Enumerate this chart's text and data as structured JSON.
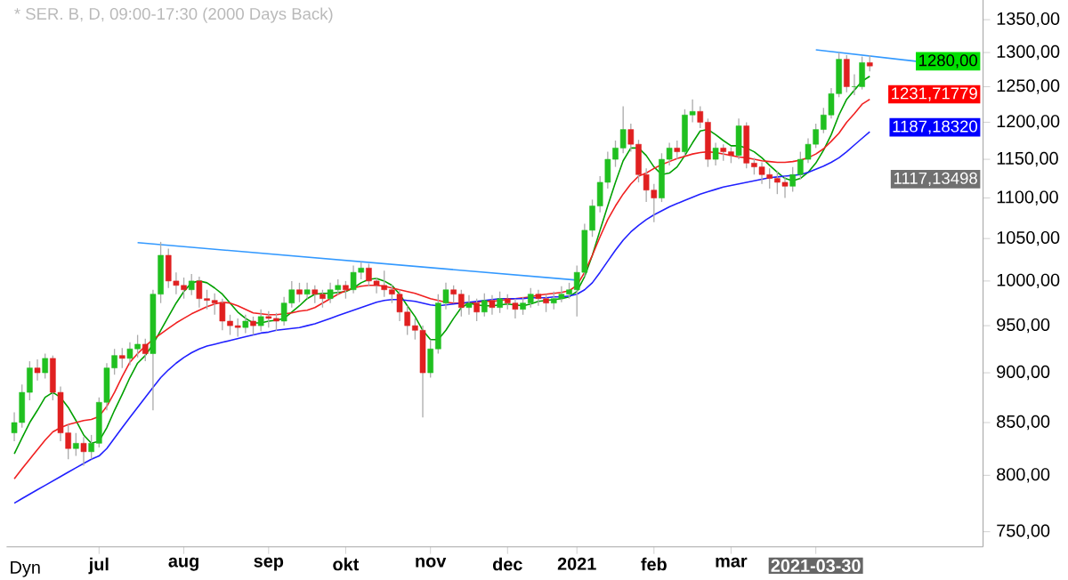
{
  "chart_data": {
    "type": "candlestick",
    "title": "* SER. B, D, 09:00-17:30 (2000 Days Back)",
    "categories": [
      null,
      null,
      null,
      null,
      null,
      null,
      null,
      null,
      null,
      null,
      null,
      "jul",
      null,
      null,
      null,
      null,
      null,
      null,
      null,
      null,
      null,
      null,
      "aug",
      null,
      null,
      null,
      null,
      null,
      null,
      null,
      null,
      null,
      null,
      "sep",
      null,
      null,
      null,
      null,
      null,
      null,
      null,
      null,
      null,
      "okt",
      null,
      null,
      null,
      null,
      null,
      null,
      null,
      null,
      null,
      null,
      "nov",
      null,
      null,
      null,
      null,
      null,
      null,
      null,
      null,
      null,
      "dec",
      null,
      null,
      null,
      null,
      null,
      null,
      null,
      null,
      "2021",
      null,
      null,
      null,
      null,
      null,
      null,
      null,
      null,
      null,
      "feb",
      null,
      null,
      null,
      null,
      null,
      null,
      null,
      null,
      null,
      "mar",
      null,
      null,
      null,
      null,
      null,
      null,
      null,
      null,
      null,
      null,
      "2021-03-30",
      null,
      null,
      null,
      null,
      null,
      null,
      null,
      null,
      null,
      null,
      null,
      null,
      null,
      null,
      null,
      null,
      null,
      null,
      null,
      null,
      null
    ],
    "ohlc": [
      [
        840,
        860,
        832,
        850
      ],
      [
        850,
        888,
        845,
        880
      ],
      [
        880,
        912,
        872,
        905
      ],
      [
        905,
        914,
        892,
        900
      ],
      [
        900,
        920,
        894,
        915
      ],
      [
        915,
        918,
        872,
        880
      ],
      [
        880,
        886,
        832,
        840
      ],
      [
        840,
        848,
        815,
        825
      ],
      [
        825,
        840,
        818,
        830
      ],
      [
        830,
        836,
        809,
        822
      ],
      [
        822,
        838,
        815,
        830
      ],
      [
        830,
        875,
        826,
        870
      ],
      [
        870,
        910,
        862,
        905
      ],
      [
        905,
        925,
        898,
        918
      ],
      [
        918,
        926,
        905,
        915
      ],
      [
        915,
        932,
        908,
        925
      ],
      [
        925,
        940,
        916,
        930
      ],
      [
        930,
        936,
        912,
        920
      ],
      [
        920,
        990,
        862,
        985
      ],
      [
        985,
        1046,
        975,
        1030
      ],
      [
        1030,
        1038,
        992,
        1000
      ],
      [
        1000,
        1010,
        985,
        995
      ],
      [
        995,
        1004,
        980,
        990
      ],
      [
        990,
        1008,
        984,
        1000
      ],
      [
        1000,
        1005,
        970,
        980
      ],
      [
        980,
        990,
        968,
        978
      ],
      [
        978,
        986,
        962,
        975
      ],
      [
        975,
        980,
        945,
        955
      ],
      [
        955,
        962,
        940,
        950
      ],
      [
        950,
        958,
        938,
        948
      ],
      [
        948,
        962,
        942,
        955
      ],
      [
        955,
        960,
        940,
        950
      ],
      [
        950,
        968,
        944,
        960
      ],
      [
        960,
        966,
        948,
        958
      ],
      [
        958,
        964,
        944,
        955
      ],
      [
        955,
        982,
        950,
        975
      ],
      [
        975,
        1000,
        970,
        990
      ],
      [
        990,
        998,
        976,
        985
      ],
      [
        985,
        998,
        980,
        990
      ],
      [
        990,
        995,
        975,
        985
      ],
      [
        985,
        990,
        970,
        980
      ],
      [
        980,
        998,
        975,
        990
      ],
      [
        990,
        1002,
        984,
        995
      ],
      [
        995,
        1000,
        980,
        990
      ],
      [
        990,
        1018,
        986,
        1010
      ],
      [
        1010,
        1022,
        1002,
        1015
      ],
      [
        1015,
        1020,
        994,
        1000
      ],
      [
        1000,
        1004,
        986,
        995
      ],
      [
        995,
        1012,
        982,
        990
      ],
      [
        990,
        996,
        975,
        985
      ],
      [
        985,
        990,
        955,
        965
      ],
      [
        965,
        972,
        940,
        950
      ],
      [
        950,
        958,
        935,
        945
      ],
      [
        945,
        950,
        855,
        900
      ],
      [
        900,
        935,
        895,
        925
      ],
      [
        925,
        985,
        920,
        975
      ],
      [
        975,
        998,
        968,
        990
      ],
      [
        990,
        995,
        975,
        985
      ],
      [
        985,
        990,
        960,
        970
      ],
      [
        970,
        984,
        962,
        975
      ],
      [
        975,
        980,
        955,
        965
      ],
      [
        965,
        986,
        960,
        978
      ],
      [
        978,
        984,
        962,
        970
      ],
      [
        970,
        988,
        964,
        980
      ],
      [
        980,
        985,
        968,
        975
      ],
      [
        975,
        980,
        958,
        968
      ],
      [
        968,
        982,
        962,
        975
      ],
      [
        975,
        992,
        970,
        985
      ],
      [
        985,
        990,
        972,
        980
      ],
      [
        980,
        985,
        965,
        975
      ],
      [
        975,
        988,
        968,
        980
      ],
      [
        980,
        994,
        976,
        985
      ],
      [
        985,
        998,
        980,
        990
      ],
      [
        990,
        1018,
        960,
        1010
      ],
      [
        1010,
        1068,
        1005,
        1060
      ],
      [
        1060,
        1098,
        1052,
        1090
      ],
      [
        1090,
        1128,
        1082,
        1120
      ],
      [
        1120,
        1160,
        1112,
        1150
      ],
      [
        1150,
        1175,
        1140,
        1165
      ],
      [
        1165,
        1222,
        1158,
        1190
      ],
      [
        1190,
        1198,
        1160,
        1170
      ],
      [
        1170,
        1176,
        1120,
        1130
      ],
      [
        1130,
        1138,
        1095,
        1110
      ],
      [
        1110,
        1118,
        1070,
        1100
      ],
      [
        1100,
        1158,
        1095,
        1150
      ],
      [
        1150,
        1172,
        1142,
        1165
      ],
      [
        1165,
        1175,
        1150,
        1160
      ],
      [
        1160,
        1218,
        1155,
        1210
      ],
      [
        1210,
        1232,
        1200,
        1215
      ],
      [
        1215,
        1222,
        1192,
        1200
      ],
      [
        1200,
        1205,
        1140,
        1150
      ],
      [
        1150,
        1172,
        1142,
        1165
      ],
      [
        1165,
        1170,
        1148,
        1160
      ],
      [
        1160,
        1166,
        1145,
        1155
      ],
      [
        1155,
        1205,
        1150,
        1195
      ],
      [
        1195,
        1200,
        1138,
        1145
      ],
      [
        1145,
        1152,
        1130,
        1140
      ],
      [
        1140,
        1146,
        1118,
        1130
      ],
      [
        1130,
        1138,
        1112,
        1125
      ],
      [
        1125,
        1135,
        1105,
        1120
      ],
      [
        1120,
        1128,
        1100,
        1115
      ],
      [
        1115,
        1140,
        1108,
        1130
      ],
      [
        1130,
        1160,
        1124,
        1150
      ],
      [
        1150,
        1178,
        1145,
        1170
      ],
      [
        1170,
        1198,
        1165,
        1190
      ],
      [
        1190,
        1220,
        1185,
        1210
      ],
      [
        1210,
        1248,
        1205,
        1240
      ],
      [
        1240,
        1300,
        1235,
        1290
      ],
      [
        1290,
        1296,
        1242,
        1250
      ],
      [
        1250,
        1268,
        1238,
        1250
      ],
      [
        1250,
        1294,
        1246,
        1285
      ],
      [
        1285,
        1296,
        1272,
        1280
      ],
      null,
      null,
      null,
      null,
      null,
      null,
      null,
      null,
      null,
      null,
      null,
      null,
      null,
      null
    ],
    "log": true,
    "ylim": [
      737,
      1381
    ],
    "yticks": [
      {
        "value": 750,
        "label": "750,00"
      },
      {
        "value": 800,
        "label": "800,00"
      },
      {
        "value": 850,
        "label": "850,00"
      },
      {
        "value": 900,
        "label": "900,00"
      },
      {
        "value": 950,
        "label": "950,00"
      },
      {
        "value": 1000,
        "label": "1000,00"
      },
      {
        "value": 1050,
        "label": "1050,00"
      },
      {
        "value": 1100,
        "label": "1100,00"
      },
      {
        "value": 1150,
        "label": "1150,00"
      },
      {
        "value": 1200,
        "label": "1200,00"
      },
      {
        "value": 1250,
        "label": "1250,00"
      },
      {
        "value": 1300,
        "label": "1300,00"
      },
      {
        "value": 1350,
        "label": "1350,00"
      }
    ],
    "series": [
      {
        "type": "line",
        "color": "#00a000",
        "values": [
          820,
          835,
          850,
          862,
          875,
          880,
          875,
          865,
          852,
          838,
          830,
          832,
          845,
          862,
          878,
          895,
          910,
          918,
          930,
          945,
          960,
          975,
          988,
          998,
          1000,
          998,
          992,
          985,
          975,
          965,
          958,
          953,
          953,
          955,
          956,
          958,
          965,
          972,
          980,
          985,
          986,
          986,
          987,
          988,
          992,
          998,
          1002,
          1003,
          1000,
          995,
          985,
          972,
          960,
          945,
          935,
          935,
          945,
          958,
          970,
          975,
          973,
          972,
          972,
          973,
          974,
          973,
          972,
          974,
          977,
          978,
          979,
          980,
          982,
          988,
          1005,
          1030,
          1060,
          1090,
          1120,
          1148,
          1165,
          1165,
          1155,
          1140,
          1130,
          1132,
          1140,
          1155,
          1172,
          1188,
          1190,
          1183,
          1175,
          1168,
          1168,
          1165,
          1160,
          1152,
          1142,
          1133,
          1125,
          1122,
          1125,
          1133,
          1145,
          1162,
          1183,
          1210,
          1232,
          1245,
          1258,
          1265,
          null,
          null,
          null,
          null,
          null,
          null,
          null,
          null,
          null,
          null,
          null,
          null,
          null,
          null
        ]
      },
      {
        "type": "line",
        "color": "#f02020",
        "values": [
          797,
          806,
          815,
          824,
          833,
          841,
          845,
          848,
          850,
          852,
          853,
          856,
          866,
          880,
          896,
          911,
          920,
          928,
          935,
          941,
          947,
          953,
          958,
          963,
          967,
          971,
          974,
          976,
          975,
          972,
          968,
          964,
          963,
          962,
          962,
          963,
          964,
          966,
          967,
          970,
          975,
          980,
          985,
          989,
          992,
          994,
          995,
          995,
          994,
          992,
          990,
          988,
          986,
          983,
          980,
          978,
          976,
          975,
          975,
          975,
          976,
          977,
          977,
          978,
          979,
          980,
          981,
          982,
          984,
          985,
          986,
          987,
          989,
          995,
          1010,
          1030,
          1052,
          1073,
          1090,
          1105,
          1118,
          1128,
          1132,
          1138,
          1143,
          1147,
          1151,
          1154,
          1157,
          1159,
          1160,
          1159,
          1157,
          1155,
          1153,
          1152,
          1150,
          1148,
          1147,
          1146,
          1146,
          1147,
          1149,
          1152,
          1157,
          1164,
          1174,
          1185,
          1200,
          1212,
          1225,
          1232,
          null,
          null,
          null,
          null,
          null,
          null,
          null,
          null,
          null,
          null,
          null,
          null,
          null,
          null
        ]
      },
      {
        "type": "line",
        "color": "#2020ff",
        "values": [
          775,
          779,
          783,
          787,
          791,
          795,
          799,
          803,
          807,
          811,
          815,
          818,
          825,
          835,
          845,
          855,
          865,
          875,
          885,
          895,
          903,
          910,
          916,
          921,
          925,
          928,
          930,
          932,
          934,
          936,
          938,
          940,
          942,
          943,
          945,
          946,
          947,
          948,
          950,
          952,
          955,
          958,
          961,
          964,
          967,
          970,
          973,
          976,
          978,
          979,
          979,
          978,
          977,
          975,
          973,
          972,
          973,
          974,
          975,
          976,
          977,
          978,
          979,
          980,
          980,
          980,
          980,
          981,
          981,
          981,
          982,
          982,
          983,
          985,
          990,
          998,
          1010,
          1023,
          1036,
          1048,
          1058,
          1066,
          1073,
          1079,
          1084,
          1089,
          1093,
          1097,
          1101,
          1105,
          1108,
          1111,
          1114,
          1116,
          1118,
          1120,
          1122,
          1124,
          1126,
          1127,
          1128,
          1129,
          1130,
          1133,
          1137,
          1141,
          1146,
          1152,
          1160,
          1169,
          1178,
          1187,
          null,
          null,
          null,
          null,
          null,
          null,
          null,
          null,
          null,
          null,
          null,
          null,
          null,
          null
        ]
      },
      {
        "type": "line",
        "color": "#3399ff",
        "values": [
          null,
          null,
          null,
          null,
          null,
          null,
          null,
          null,
          null,
          null,
          null,
          null,
          null,
          null,
          null,
          null,
          1045,
          null,
          null,
          null,
          null,
          null,
          null,
          null,
          null,
          null,
          null,
          null,
          null,
          null,
          null,
          null,
          null,
          null,
          null,
          null,
          null,
          null,
          null,
          null,
          null,
          null,
          null,
          null,
          null,
          null,
          null,
          null,
          null,
          null,
          null,
          null,
          null,
          null,
          null,
          null,
          null,
          null,
          null,
          null,
          null,
          null,
          null,
          null,
          null,
          null,
          null,
          null,
          null,
          null,
          null,
          null,
          null,
          1001,
          null,
          null,
          null,
          null,
          null,
          null,
          null,
          null,
          null,
          null,
          null,
          null,
          null,
          null,
          null,
          null,
          null,
          null,
          null,
          null,
          null,
          null,
          null,
          null,
          null,
          null,
          null,
          null,
          null,
          null,
          null,
          null,
          null,
          null,
          null,
          null,
          null,
          null,
          null,
          null,
          null,
          null,
          null,
          null,
          null,
          null,
          null,
          null,
          null,
          null,
          null,
          null
        ]
      },
      {
        "type": "line",
        "color": "#3399ff",
        "values": [
          null,
          null,
          null,
          null,
          null,
          null,
          null,
          null,
          null,
          null,
          null,
          null,
          null,
          null,
          null,
          null,
          null,
          null,
          null,
          null,
          null,
          null,
          null,
          null,
          null,
          null,
          null,
          null,
          null,
          null,
          null,
          null,
          null,
          null,
          null,
          null,
          null,
          null,
          null,
          null,
          null,
          null,
          null,
          null,
          null,
          null,
          null,
          null,
          null,
          null,
          null,
          null,
          null,
          null,
          null,
          null,
          null,
          null,
          null,
          null,
          null,
          null,
          null,
          null,
          null,
          null,
          null,
          null,
          null,
          null,
          null,
          null,
          null,
          null,
          null,
          null,
          null,
          null,
          null,
          null,
          null,
          null,
          null,
          null,
          null,
          null,
          null,
          null,
          null,
          null,
          null,
          null,
          null,
          null,
          null,
          null,
          null,
          null,
          null,
          null,
          null,
          null,
          null,
          null,
          1304,
          null,
          null,
          null,
          null,
          null,
          null,
          null,
          null,
          null,
          null,
          null,
          null,
          1287,
          null,
          null,
          null,
          null,
          null,
          null,
          null,
          null
        ]
      }
    ],
    "annotations": [
      "Dyn",
      "1280,00",
      "1231,71779",
      "1187,18320",
      "1117,13498"
    ]
  }
}
